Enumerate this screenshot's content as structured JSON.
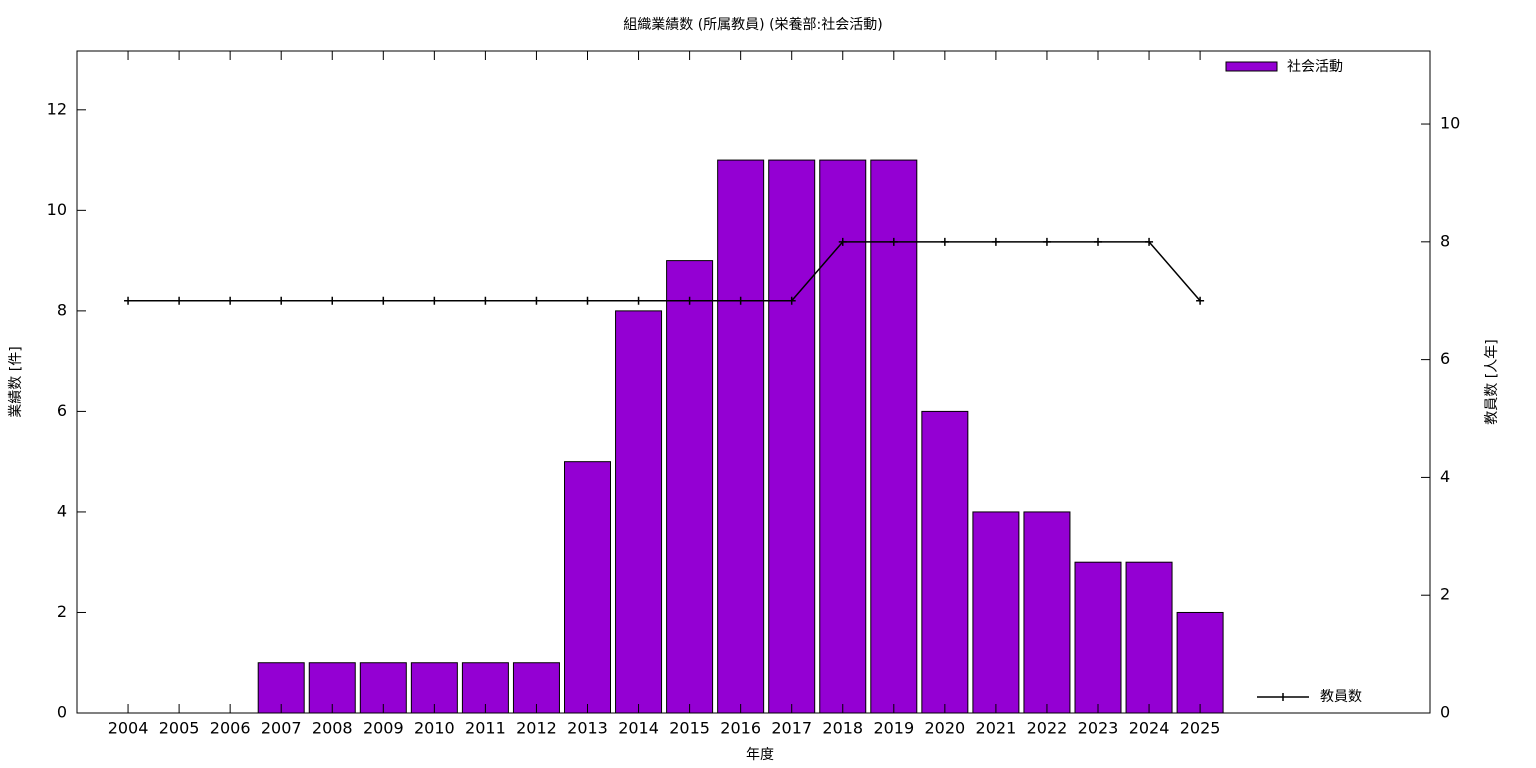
{
  "chart_data": {
    "type": "bar",
    "title": "組織業績数 (所属教員) (栄養部:社会活動)",
    "x_label": "年度",
    "y_label": "業績数 [件]",
    "y2_label": "教員数 [人年]",
    "categories": [
      "2004",
      "2005",
      "2006",
      "2007",
      "2008",
      "2009",
      "2010",
      "2011",
      "2012",
      "2013",
      "2014",
      "2015",
      "2016",
      "2017",
      "2018",
      "2019",
      "2020",
      "2021",
      "2022",
      "2023",
      "2024",
      "2025"
    ],
    "series": [
      {
        "name": "社会活動",
        "color": "#9400d3",
        "values": [
          0,
          0,
          0,
          1,
          1,
          1,
          1,
          1,
          1,
          5,
          8,
          9,
          11,
          11,
          11,
          11,
          6,
          4,
          4,
          3,
          3,
          2
        ]
      },
      {
        "name": "教員数",
        "color": "#000000",
        "type": "line",
        "axis": "y2",
        "values": [
          7,
          7,
          7,
          7,
          7,
          7,
          7,
          7,
          7,
          7,
          7,
          7,
          7,
          7,
          8,
          8,
          8,
          8,
          8,
          8,
          8,
          7
        ]
      }
    ],
    "ylim": [
      0,
      13.17
    ],
    "yticks": [
      0,
      2,
      4,
      6,
      8,
      10,
      12
    ],
    "y2lim": [
      0,
      11.24
    ],
    "y2ticks": [
      0,
      2,
      4,
      6,
      8,
      10
    ]
  }
}
